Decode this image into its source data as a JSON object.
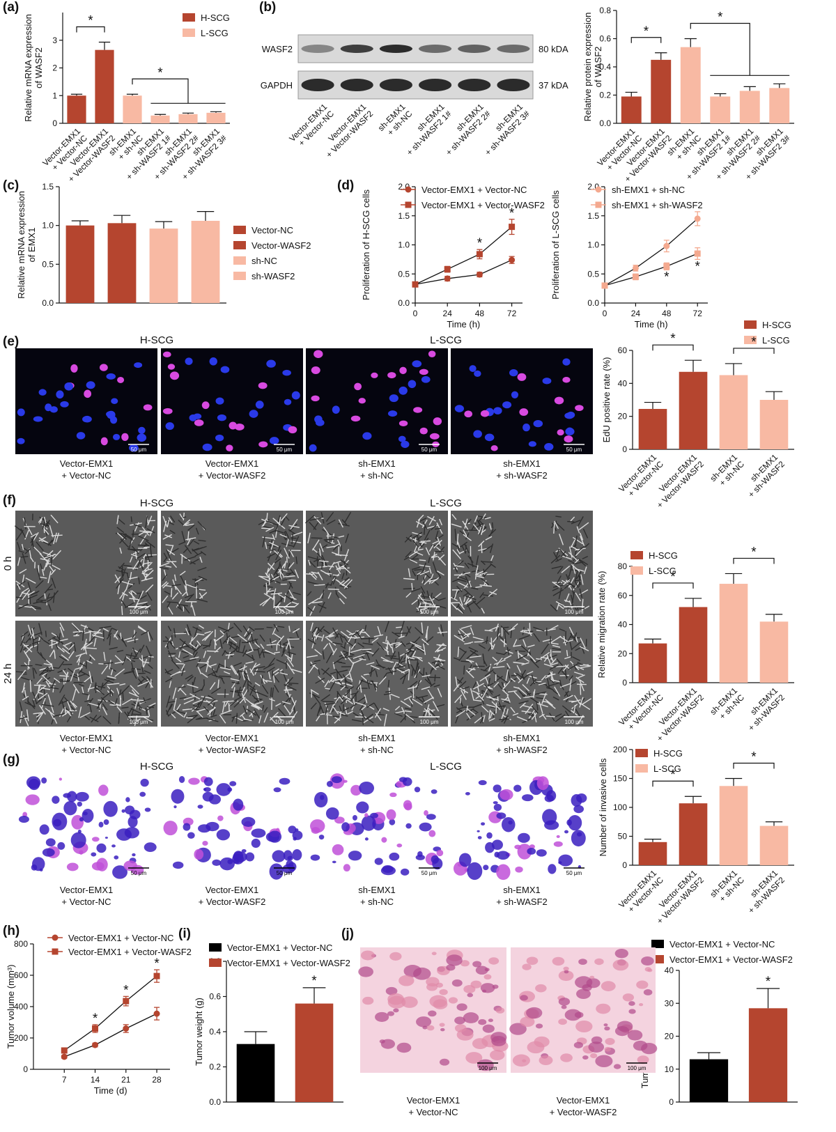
{
  "chart_data": [
    {
      "type": "bar",
      "panel": "(a)",
      "ylabel": [
        "Relative mRNA expression",
        "of WASF2"
      ],
      "categories": [
        [
          "Vector-EMX1",
          "+ Vector-NC"
        ],
        [
          "Vector-EMX1",
          "+ Vector-WASF2"
        ],
        [
          "sh-EMX1",
          "+ sh-NC"
        ],
        [
          "sh-EMX1",
          "+ sh-WASF2 1#"
        ],
        [
          "sh-EMX1",
          "+ sh-WASF2 2#"
        ],
        [
          "sh-EMX1",
          "+ sh-WASF2 3#"
        ]
      ],
      "values": [
        1.0,
        2.65,
        1.0,
        0.28,
        0.33,
        0.38
      ],
      "errors": [
        0.05,
        0.28,
        0.05,
        0.04,
        0.04,
        0.04
      ],
      "colors": [
        "#b5452f",
        "#b5452f",
        "#f8b9a3",
        "#f8b9a3",
        "#f8b9a3",
        "#f8b9a3"
      ],
      "legend": [
        {
          "name": "H-SCG",
          "color": "#b5452f"
        },
        {
          "name": "L-SCG",
          "color": "#f8b9a3"
        }
      ],
      "ylim": [
        0,
        4
      ],
      "yticks": [
        0,
        1,
        2,
        3
      ],
      "significance": [
        {
          "label": "*",
          "from": [
            0
          ],
          "to": [
            1
          ]
        },
        {
          "label": "*",
          "from": [
            2
          ],
          "to": [
            3,
            4,
            5
          ]
        }
      ]
    },
    {
      "type": "bar",
      "panel": "(b)",
      "ylabel": [
        "Relative protein expression",
        "of WASF2"
      ],
      "categories": [
        [
          "Vector-EMX1",
          "+ Vector-NC"
        ],
        [
          "Vector-EMX1",
          "+ Vector-WASF2"
        ],
        [
          "sh-EMX1",
          "+ sh-NC"
        ],
        [
          "sh-EMX1",
          "+ sh-WASF2 1#"
        ],
        [
          "sh-EMX1",
          "+ sh-WASF2 2#"
        ],
        [
          "sh-EMX1",
          "+ sh-WASF2 3#"
        ]
      ],
      "values": [
        0.19,
        0.45,
        0.54,
        0.19,
        0.23,
        0.25
      ],
      "errors": [
        0.03,
        0.05,
        0.06,
        0.02,
        0.03,
        0.03
      ],
      "colors": [
        "#b5452f",
        "#b5452f",
        "#f8b9a3",
        "#f8b9a3",
        "#f8b9a3",
        "#f8b9a3"
      ],
      "ylim": [
        0,
        0.8
      ],
      "yticks": [
        {
          "value": 0,
          "label": "0.0"
        },
        0.2,
        0.4,
        0.6,
        0.8
      ],
      "significance": [
        {
          "label": "*",
          "from": [
            0
          ],
          "to": [
            1
          ]
        },
        {
          "label": "*",
          "from": [
            2
          ],
          "to": [
            3,
            4,
            5
          ]
        }
      ]
    },
    {
      "type": "bar",
      "panel": "(c)",
      "ylabel": [
        "Relative mRNA expression",
        "of EMX1"
      ],
      "values": [
        1.0,
        1.03,
        0.96,
        1.06
      ],
      "errors": [
        0.06,
        0.1,
        0.09,
        0.12
      ],
      "colors": [
        "#b5452f",
        "#b5452f",
        "#f8b9a3",
        "#f8b9a3"
      ],
      "legend": [
        {
          "name": "Vector-NC",
          "color": "#b5452f"
        },
        {
          "name": "Vector-WASF2",
          "color": "#b5452f"
        },
        {
          "name": "sh-NC",
          "color": "#f8b9a3"
        },
        {
          "name": "sh-WASF2",
          "color": "#f8b9a3"
        }
      ],
      "ylim": [
        0,
        1.5
      ],
      "yticks": [
        {
          "value": 0,
          "label": "0.0"
        },
        0.5,
        {
          "value": 1,
          "label": "1.0"
        },
        1.5
      ]
    },
    {
      "type": "line",
      "panel": "(d)",
      "ylabel": [
        "Proliferation of H-SCG cells"
      ],
      "xlabel": "Time (h)",
      "x": [
        0,
        24,
        48,
        72
      ],
      "xlim": [
        0,
        80
      ],
      "xticks": [
        0,
        24,
        48,
        72
      ],
      "series": [
        {
          "name": "Vector-EMX1 + Vector-NC",
          "color": "#b5452f",
          "marker": "circle",
          "values": [
            0.32,
            0.42,
            0.49,
            0.74
          ],
          "errors": [
            0.02,
            0.04,
            0.04,
            0.06
          ]
        },
        {
          "name": "Vector-EMX1 + Vector-WASF2",
          "color": "#b5452f",
          "marker": "square",
          "values": [
            0.32,
            0.58,
            0.84,
            1.31
          ],
          "errors": [
            0.02,
            0.05,
            0.08,
            0.13
          ]
        }
      ],
      "ylim": [
        0,
        2
      ],
      "yticks": [
        {
          "value": 0,
          "label": "0.0"
        },
        0.5,
        {
          "value": 1,
          "label": "1.0"
        },
        1.5,
        {
          "value": 2,
          "label": "2.0"
        }
      ],
      "significance": [
        {
          "label": "*",
          "series": 1,
          "at": [
            2,
            3
          ],
          "side": "above"
        }
      ]
    },
    {
      "type": "line",
      "ylabel": [
        "Proliferation of L-SCG cells"
      ],
      "xlabel": "Time (h)",
      "x": [
        0,
        24,
        48,
        72
      ],
      "xlim": [
        0,
        80
      ],
      "xticks": [
        0,
        24,
        48,
        72
      ],
      "series": [
        {
          "name": "sh-EMX1 + sh-NC",
          "color": "#f4a98f",
          "marker": "circle",
          "values": [
            0.3,
            0.6,
            0.98,
            1.45
          ],
          "errors": [
            0.02,
            0.05,
            0.1,
            0.12
          ]
        },
        {
          "name": "sh-EMX1 + sh-WASF2",
          "color": "#f4a98f",
          "marker": "square",
          "values": [
            0.3,
            0.45,
            0.63,
            0.85
          ],
          "errors": [
            0.02,
            0.05,
            0.06,
            0.1
          ]
        }
      ],
      "ylim": [
        0,
        2
      ],
      "yticks": [
        {
          "value": 0,
          "label": "0.0"
        },
        0.5,
        {
          "value": 1,
          "label": "1.0"
        },
        1.5,
        {
          "value": 2,
          "label": "2.0"
        }
      ],
      "significance": [
        {
          "label": "*",
          "series": 1,
          "at": [
            2,
            3
          ],
          "side": "below"
        }
      ]
    },
    {
      "type": "bar",
      "panel": "(e)",
      "ylabel": [
        "EdU positive rate (%)"
      ],
      "categories": [
        [
          "Vector-EMX1",
          "+ Vector-NC"
        ],
        [
          "Vector-EMX1",
          "+ Vector-WASF2"
        ],
        [
          "sh-EMX1",
          "+ sh-NC"
        ],
        [
          "sh-EMX1",
          "+ sh-WASF2"
        ]
      ],
      "values": [
        24.5,
        47,
        45,
        30
      ],
      "errors": [
        4,
        7,
        7,
        5
      ],
      "colors": [
        "#b5452f",
        "#b5452f",
        "#f8b9a3",
        "#f8b9a3"
      ],
      "legend": [
        {
          "name": "H-SCG",
          "color": "#b5452f"
        },
        {
          "name": "L-SCG",
          "color": "#f8b9a3"
        }
      ],
      "ylim": [
        0,
        60
      ],
      "yticks": [
        0,
        20,
        40,
        60
      ],
      "significance": [
        {
          "label": "*",
          "from": [
            0
          ],
          "to": [
            1
          ]
        },
        {
          "label": "*",
          "from": [
            2
          ],
          "to": [
            3
          ]
        }
      ]
    },
    {
      "type": "bar",
      "panel": "(f)",
      "ylabel": [
        "Relative migration rate (%)"
      ],
      "categories": [
        [
          "Vector-EMX1",
          "+ Vector-NC"
        ],
        [
          "Vector-EMX1",
          "+ Vector-WASF2"
        ],
        [
          "sh-EMX1",
          "+ sh-NC"
        ],
        [
          "sh-EMX1",
          "+ sh-WASF2"
        ]
      ],
      "values": [
        27,
        52,
        68,
        42
      ],
      "errors": [
        3,
        6,
        7,
        5
      ],
      "colors": [
        "#b5452f",
        "#b5452f",
        "#f8b9a3",
        "#f8b9a3"
      ],
      "legend": [
        {
          "name": "H-SCG",
          "color": "#b5452f"
        },
        {
          "name": "L-SCG",
          "color": "#f8b9a3"
        }
      ],
      "ylim": [
        0,
        80
      ],
      "yticks": [
        0,
        20,
        40,
        60,
        80
      ],
      "significance": [
        {
          "label": "*",
          "from": [
            0
          ],
          "to": [
            1
          ]
        },
        {
          "label": "*",
          "from": [
            2
          ],
          "to": [
            3
          ]
        }
      ]
    },
    {
      "type": "bar",
      "panel": "(g)",
      "ylabel": [
        "Number of invasive cells"
      ],
      "categories": [
        [
          "Vector-EMX1",
          "+ Vector-NC"
        ],
        [
          "Vector-EMX1",
          "+ Vector-WASF2"
        ],
        [
          "sh-EMX1",
          "+ sh-NC"
        ],
        [
          "sh-EMX1",
          "+ sh-WASF2"
        ]
      ],
      "values": [
        40,
        107,
        137,
        68
      ],
      "errors": [
        5,
        12,
        13,
        7
      ],
      "colors": [
        "#b5452f",
        "#b5452f",
        "#f8b9a3",
        "#f8b9a3"
      ],
      "legend": [
        {
          "name": "H-SCG",
          "color": "#b5452f"
        },
        {
          "name": "L-SCG",
          "color": "#f8b9a3"
        }
      ],
      "ylim": [
        0,
        200
      ],
      "yticks": [
        0,
        50,
        100,
        150,
        200
      ],
      "significance": [
        {
          "label": "*",
          "from": [
            0
          ],
          "to": [
            1
          ]
        },
        {
          "label": "*",
          "from": [
            2
          ],
          "to": [
            3
          ]
        }
      ]
    },
    {
      "type": "line",
      "panel": "(h)",
      "ylabel": [
        "Tumor volume (mm³)"
      ],
      "xlabel": "Time (d)",
      "x": [
        7,
        14,
        21,
        28
      ],
      "xlim": [
        0,
        31
      ],
      "xticks": [
        7,
        14,
        21,
        28
      ],
      "series": [
        {
          "name": "Vector-EMX1 + Vector-NC",
          "color": "#b5452f",
          "marker": "circle",
          "values": [
            80,
            155,
            260,
            355
          ],
          "errors": [
            10,
            12,
            25,
            40
          ]
        },
        {
          "name": "Vector-EMX1 + Vector-WASF2",
          "color": "#b5452f",
          "marker": "square",
          "values": [
            120,
            260,
            435,
            595
          ],
          "errors": [
            15,
            25,
            30,
            40
          ]
        }
      ],
      "ylim": [
        0,
        800
      ],
      "yticks": [
        0,
        200,
        400,
        600,
        800
      ],
      "significance": [
        {
          "label": "*",
          "series": 1,
          "at": [
            1,
            2,
            3
          ],
          "side": "above"
        }
      ]
    },
    {
      "type": "bar",
      "panel": "(i)",
      "ylabel": [
        "Tumor weight (g)"
      ],
      "values": [
        0.33,
        0.56
      ],
      "errors": [
        0.07,
        0.09
      ],
      "colors": [
        "#000000",
        "#b5452f"
      ],
      "legend": [
        {
          "name": "Vector-EMX1 + Vector-NC",
          "color": "#000000"
        },
        {
          "name": "Vector-EMX1 + Vector-WASF2",
          "color": "#b5452f"
        }
      ],
      "ylim": [
        0,
        0.8
      ],
      "yticks": [
        {
          "value": 0,
          "label": "0.0"
        },
        0.2,
        0.4,
        0.6,
        0.8
      ],
      "significance": [
        {
          "label": "*",
          "at": [
            1
          ]
        }
      ]
    },
    {
      "type": "bar",
      "panel": "(j)",
      "ylabel": [
        "Tumor infiltration area (%)"
      ],
      "values": [
        13,
        28.5
      ],
      "errors": [
        2,
        6
      ],
      "colors": [
        "#000000",
        "#b5452f"
      ],
      "legend": [
        {
          "name": "Vector-EMX1 + Vector-NC",
          "color": "#000000"
        },
        {
          "name": "Vector-EMX1 + Vector-WASF2",
          "color": "#b5452f"
        }
      ],
      "ylim": [
        0,
        40
      ],
      "yticks": [
        0,
        10,
        20,
        30,
        40
      ],
      "significance": [
        {
          "label": "*",
          "at": [
            1
          ]
        }
      ]
    }
  ],
  "blot": {
    "rows": [
      {
        "protein": "WASF2",
        "size": "80 kDA"
      },
      {
        "protein": "GAPDH",
        "size": "37 kDA"
      }
    ]
  },
  "images": {
    "e": {
      "groups": [
        "H-SCG",
        "L-SCG"
      ],
      "scale": "50 μm"
    },
    "f": {
      "groups": [
        "H-SCG",
        "L-SCG"
      ],
      "rows": [
        "0 h",
        "24 h"
      ],
      "scale": "100 μm"
    },
    "g": {
      "groups": [
        "H-SCG",
        "L-SCG"
      ],
      "scale": "50 μm"
    },
    "j": {
      "scale": "100 μm",
      "captions": [
        [
          "Vector-EMX1",
          "+ Vector-NC"
        ],
        [
          "Vector-EMX1",
          "+ Vector-WASF2"
        ]
      ]
    }
  }
}
